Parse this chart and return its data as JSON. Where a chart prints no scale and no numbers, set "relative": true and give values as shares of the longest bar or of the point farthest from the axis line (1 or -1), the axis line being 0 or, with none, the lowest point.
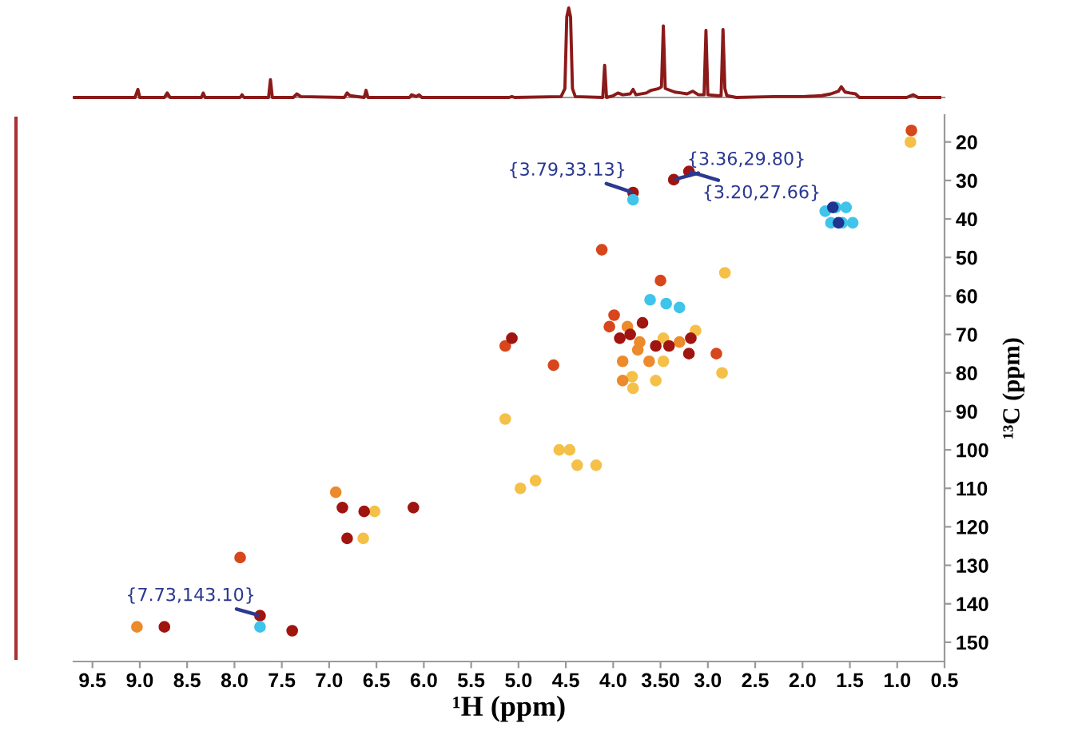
{
  "chart_data": [
    {
      "type": "line",
      "relative": true,
      "xlim": [
        9.7,
        0.5
      ],
      "tick_labels": false,
      "series": [
        {
          "color": "#8b1a1a",
          "x": [
            9.69,
            9.05,
            9.02,
            9.0,
            8.74,
            8.71,
            8.68,
            8.35,
            8.33,
            8.31,
            7.94,
            7.92,
            7.9,
            7.64,
            7.62,
            7.6,
            7.38,
            7.34,
            7.3,
            6.84,
            6.81,
            6.78,
            6.63,
            6.61,
            6.59,
            6.15,
            6.13,
            6.08,
            6.05,
            6.02,
            5.1,
            5.07,
            5.04,
            4.55,
            4.51,
            4.49,
            4.47,
            4.45,
            4.43,
            4.4,
            4.11,
            4.09,
            4.07,
            4.0,
            3.95,
            3.9,
            3.82,
            3.79,
            3.76,
            3.65,
            3.6,
            3.52,
            3.49,
            3.47,
            3.45,
            3.4,
            3.35,
            3.28,
            3.22,
            3.16,
            3.1,
            3.04,
            3.02,
            3.0,
            2.9,
            2.86,
            2.84,
            2.82,
            2.8,
            2.7,
            2.3,
            2.0,
            1.8,
            1.7,
            1.62,
            1.59,
            1.55,
            1.5,
            1.44,
            1.4,
            0.9,
            0.83,
            0.78,
            0.55
          ],
          "values": [
            0,
            0,
            0.09,
            0,
            0,
            0.05,
            0,
            0,
            0.05,
            0,
            0,
            0.03,
            0,
            0,
            0.2,
            0,
            0,
            0.04,
            0.01,
            0,
            0.05,
            0.02,
            0,
            0.08,
            0,
            0,
            0.03,
            0.01,
            0.03,
            0,
            0,
            0.01,
            0,
            0.01,
            0.1,
            0.9,
            1.0,
            0.9,
            0.1,
            0.01,
            0,
            0.36,
            0,
            0.02,
            0.05,
            0.03,
            0.04,
            0.09,
            0.03,
            0.05,
            0.08,
            0.1,
            0.12,
            0.8,
            0.1,
            0.08,
            0.06,
            0.05,
            0.04,
            0.07,
            0.03,
            0.03,
            0.75,
            0.03,
            0.02,
            0.02,
            0.76,
            0.1,
            0.02,
            0,
            0.01,
            0.01,
            0.02,
            0.04,
            0.07,
            0.12,
            0.06,
            0.05,
            0.04,
            0,
            0,
            0.03,
            0,
            0
          ]
        }
      ]
    },
    {
      "type": "scatter",
      "xlabel": "¹H (ppm)",
      "ylabel": "¹³C (ppm)",
      "marker": "circle",
      "xlim": [
        9.7,
        0.5
      ],
      "ylim": [
        155,
        13
      ],
      "xticks": [
        9.5,
        {
          "value": 9,
          "label": "9.0"
        },
        8.5,
        {
          "value": 8,
          "label": "8.0"
        },
        7.5,
        {
          "value": 7,
          "label": "7.0"
        },
        6.5,
        {
          "value": 6,
          "label": "6.0"
        },
        5.5,
        {
          "value": 5,
          "label": "5.0"
        },
        4.5,
        {
          "value": 4,
          "label": "4.0"
        },
        {
          "value": 3.5,
          "label": "3.50"
        },
        {
          "value": 3,
          "label": "3.0"
        },
        2.5,
        {
          "value": 2,
          "label": "2.0"
        },
        1.5,
        {
          "value": 1,
          "label": "1.0"
        },
        0.5
      ],
      "yticks": [
        20,
        30,
        40,
        50,
        60,
        70,
        80,
        90,
        100,
        110,
        120,
        130,
        140,
        150
      ],
      "series": [
        {
          "color": "#f5c048",
          "x": [
            0.86,
            2.82,
            3.47,
            3.13,
            3.47,
            3.8,
            3.55,
            3.79,
            2.85,
            5.14,
            4.57,
            4.46,
            4.38,
            4.18,
            4.98,
            4.82,
            6.52,
            6.64
          ],
          "values": [
            20,
            54,
            71,
            69,
            77,
            81,
            82,
            84,
            80,
            92,
            100,
            100,
            104,
            104,
            110,
            108,
            116,
            123
          ]
        },
        {
          "color": "#ec8a2c",
          "x": [
            3.85,
            3.72,
            3.74,
            3.3,
            3.9,
            3.62,
            3.9,
            6.93,
            9.03
          ],
          "values": [
            68,
            72,
            74,
            72,
            77,
            77,
            82,
            111,
            146
          ]
        },
        {
          "color": "#d8461c",
          "x": [
            3.99,
            4.04,
            5.14,
            4.63,
            7.94,
            4.12,
            3.5,
            0.85,
            2.91
          ],
          "values": [
            65,
            68,
            73,
            78,
            128,
            48,
            56,
            17,
            75
          ]
        },
        {
          "color": "#a0150f",
          "x": [
            3.93,
            3.82,
            3.2,
            5.07,
            6.86,
            6.63,
            6.11,
            6.81,
            7.39,
            3.69,
            3.55,
            3.41,
            3.18,
            8.74,
            3.79,
            3.36,
            3.2,
            7.73
          ],
          "values": [
            71,
            70,
            75,
            71,
            115,
            116,
            115,
            123,
            147,
            67,
            73,
            73,
            71,
            146,
            33.13,
            29.8,
            27.66,
            143.1
          ]
        },
        {
          "color": "#3fc4ea",
          "x": [
            3.79,
            1.76,
            1.65,
            1.54,
            1.7,
            1.47,
            1.58,
            3.61,
            3.44,
            3.3,
            7.73
          ],
          "values": [
            35,
            38,
            37,
            37,
            41,
            41,
            41,
            61,
            62,
            63,
            146
          ]
        },
        {
          "color": "#1f3590",
          "x": [
            1.68,
            1.62
          ],
          "values": [
            37,
            41
          ]
        }
      ],
      "annotations": [
        {
          "text": "{3.79,33.13}",
          "x": 3.79,
          "y": 33.13
        },
        {
          "text": "{3.36,29.80}",
          "x": 3.36,
          "y": 29.8
        },
        {
          "text": "{3.20,27.66}",
          "x": 3.2,
          "y": 27.66
        },
        {
          "text": "{7.73,143.10}",
          "x": 7.73,
          "y": 143.1
        }
      ]
    }
  ]
}
